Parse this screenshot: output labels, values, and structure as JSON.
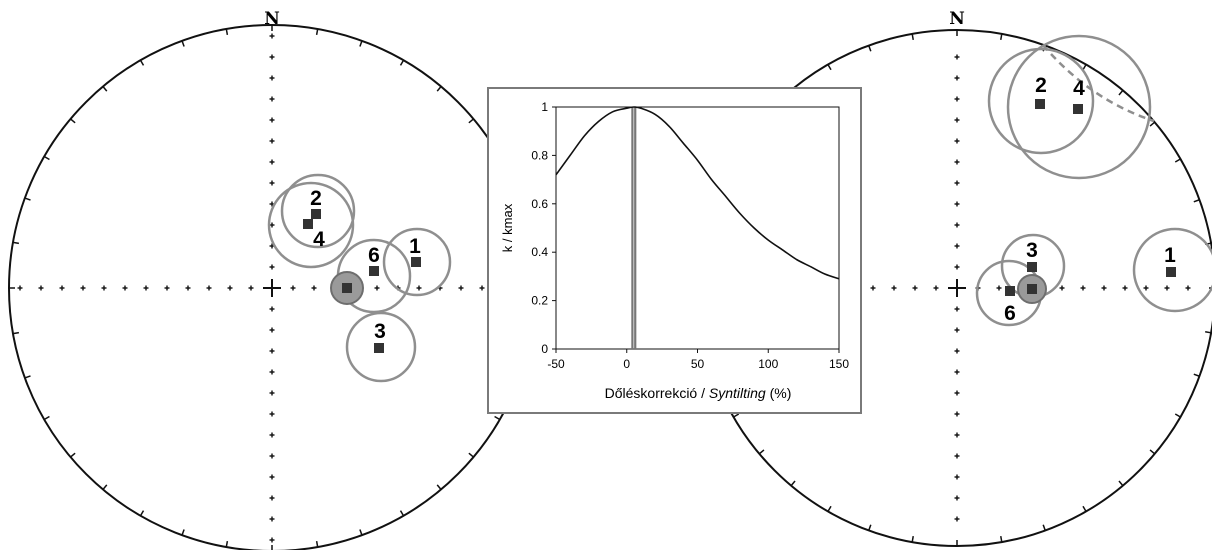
{
  "left_net": {
    "north_label": "N",
    "sites": [
      {
        "label": "2"
      },
      {
        "label": "4"
      },
      {
        "label": "6"
      },
      {
        "label": "1"
      },
      {
        "label": "3"
      }
    ]
  },
  "right_net": {
    "north_label": "N",
    "sites": [
      {
        "label": "2"
      },
      {
        "label": "4"
      },
      {
        "label": "3"
      },
      {
        "label": "1"
      },
      {
        "label": "6"
      }
    ]
  },
  "chart_data": {
    "type": "line",
    "title": "",
    "xlabel_prefix": "Dőléskorrekció / ",
    "xlabel_italic": "Syntilting",
    "xlabel_suffix": " (%)",
    "ylabel": "k / kmax",
    "xlim": [
      -50,
      150
    ],
    "ylim": [
      0,
      1
    ],
    "x_ticks": [
      "-50",
      "0",
      "50",
      "100",
      "150"
    ],
    "y_ticks": [
      "0",
      "0.2",
      "0.4",
      "0.6",
      "0.8",
      "1"
    ],
    "series": [
      {
        "x": [
          -50,
          -40,
          -30,
          -20,
          -10,
          0,
          5,
          10,
          20,
          30,
          40,
          50,
          60,
          70,
          80,
          90,
          100,
          110,
          120,
          130,
          140,
          150
        ],
        "y": [
          0.72,
          0.8,
          0.88,
          0.94,
          0.98,
          0.995,
          1.0,
          0.995,
          0.97,
          0.92,
          0.85,
          0.78,
          0.7,
          0.63,
          0.56,
          0.5,
          0.45,
          0.41,
          0.37,
          0.34,
          0.31,
          0.29
        ]
      }
    ],
    "max_marker_x": [
      4,
      6
    ]
  }
}
